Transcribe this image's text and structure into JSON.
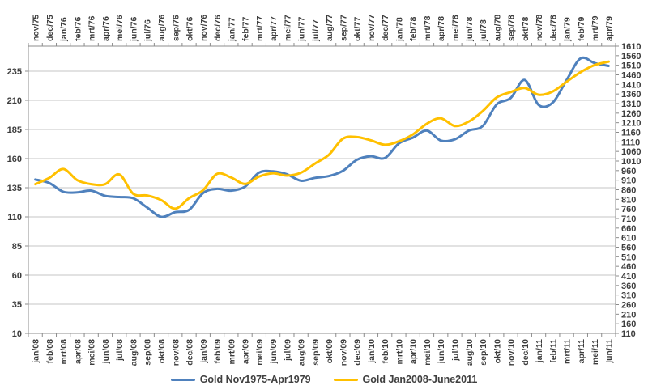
{
  "chart_data": {
    "type": "line",
    "title": "",
    "smooth": true,
    "grid": "horizontal",
    "legend_position": "bottom",
    "colors": {
      "series_blue": "#4F81BD",
      "series_yellow": "#FFC000",
      "gridline": "#C6C6C6",
      "axis": "#8C8C8C",
      "label_text": "#3D3D3D"
    },
    "categories_top": [
      "nov/75",
      "dec/75",
      "jan/76",
      "feb/76",
      "mrt/76",
      "apr/76",
      "mei/76",
      "jun/76",
      "jul/76",
      "aug/76",
      "sep/76",
      "okt/76",
      "nov/76",
      "dec/76",
      "jan/77",
      "feb/77",
      "mrt/77",
      "apr/77",
      "mei/77",
      "jun/77",
      "jul/77",
      "aug/77",
      "sep/77",
      "okt/77",
      "nov/77",
      "dec/77",
      "jan/78",
      "feb/78",
      "mrt/78",
      "apr/78",
      "mei/78",
      "jun/78",
      "jul/78",
      "aug/78",
      "sep/78",
      "okt/78",
      "nov/78",
      "dec/78",
      "jan/79",
      "feb/79",
      "mrt/79",
      "apr/79"
    ],
    "categories_bottom": [
      "jan/08",
      "feb/08",
      "mrt/08",
      "apr/08",
      "mei/08",
      "jun/08",
      "jul/08",
      "aug/08",
      "sep/08",
      "okt/08",
      "nov/08",
      "dec/08",
      "jan/09",
      "feb/09",
      "mrt/09",
      "apr/09",
      "mei/09",
      "jun/09",
      "jul/09",
      "aug/09",
      "sep/09",
      "okt/09",
      "nov/09",
      "dec/09",
      "jan/10",
      "feb/10",
      "mrt/10",
      "apr/10",
      "mei/10",
      "jun/10",
      "jul/10",
      "aug/10",
      "sep/10",
      "okt/10",
      "nov/10",
      "dec/10",
      "jan/11",
      "feb/11",
      "mrt/11",
      "apr/11",
      "mei/11",
      "jun/11"
    ],
    "left_axis": {
      "min": 10,
      "max": 235,
      "step": 25,
      "ticks": [
        235,
        210,
        185,
        160,
        135,
        110,
        85,
        60,
        35,
        10
      ]
    },
    "right_axis": {
      "min": 110,
      "max": 1610,
      "step": 50,
      "ticks": [
        1610,
        1560,
        1510,
        1460,
        1410,
        1360,
        1310,
        1260,
        1210,
        1160,
        1110,
        1060,
        1010,
        960,
        910,
        860,
        810,
        760,
        710,
        660,
        610,
        560,
        510,
        460,
        410,
        360,
        310,
        260,
        210,
        160,
        110
      ]
    },
    "series": [
      {
        "name": "Gold Nov1975-Apr1979",
        "axis": "left",
        "color": "#4F81BD",
        "values": [
          142,
          139,
          131.5,
          131,
          132.5,
          128,
          127,
          126,
          118,
          110,
          114,
          116,
          130.5,
          134,
          132.5,
          136,
          148,
          149,
          146.5,
          141,
          143.5,
          145,
          149.5,
          159,
          162,
          160.5,
          173,
          178,
          184,
          175.5,
          176.5,
          184,
          188,
          206.5,
          212,
          227.5,
          206,
          208,
          227.5,
          246,
          242,
          239.5
        ]
      },
      {
        "name": "Gold Jan2008-June2011",
        "axis": "right",
        "color": "#FFC000",
        "values": [
          889,
          922,
          968,
          910,
          889,
          889,
          940,
          839,
          830,
          806,
          761,
          816,
          858,
          943,
          924,
          890,
          929,
          946,
          934,
          949,
          997,
          1043,
          1127,
          1135,
          1118,
          1095,
          1113,
          1149,
          1205,
          1233,
          1193,
          1216,
          1271,
          1342,
          1370,
          1391,
          1356,
          1373,
          1424,
          1474,
          1511,
          1529
        ]
      }
    ]
  }
}
